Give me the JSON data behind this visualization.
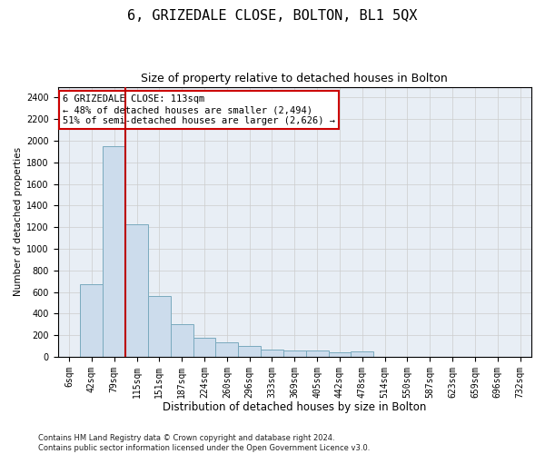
{
  "title": "6, GRIZEDALE CLOSE, BOLTON, BL1 5QX",
  "subtitle": "Size of property relative to detached houses in Bolton",
  "xlabel": "Distribution of detached houses by size in Bolton",
  "ylabel": "Number of detached properties",
  "categories": [
    "6sqm",
    "42sqm",
    "79sqm",
    "115sqm",
    "151sqm",
    "187sqm",
    "224sqm",
    "260sqm",
    "296sqm",
    "333sqm",
    "369sqm",
    "405sqm",
    "442sqm",
    "478sqm",
    "514sqm",
    "550sqm",
    "587sqm",
    "623sqm",
    "659sqm",
    "696sqm",
    "732sqm"
  ],
  "values": [
    0,
    672,
    1950,
    1230,
    560,
    300,
    175,
    130,
    100,
    70,
    60,
    55,
    45,
    50,
    0,
    0,
    0,
    0,
    0,
    0,
    0
  ],
  "bar_color": "#ccdcec",
  "bar_edge_color": "#7aaabe",
  "bar_linewidth": 0.7,
  "vline_color": "#bb0000",
  "vline_x": 2.48,
  "annotation_line1": "6 GRIZEDALE CLOSE: 113sqm",
  "annotation_line2": "← 48% of detached houses are smaller (2,494)",
  "annotation_line3": "51% of semi-detached houses are larger (2,626) →",
  "annotation_box_facecolor": "#ffffff",
  "annotation_box_edgecolor": "#cc0000",
  "ylim": [
    0,
    2500
  ],
  "yticks": [
    0,
    200,
    400,
    600,
    800,
    1000,
    1200,
    1400,
    1600,
    1800,
    2000,
    2200,
    2400
  ],
  "grid_color": "#cccccc",
  "plot_bg_color": "#e8eef5",
  "title_fontsize": 11,
  "subtitle_fontsize": 9,
  "xlabel_fontsize": 8.5,
  "ylabel_fontsize": 7.5,
  "tick_fontsize": 7,
  "annotation_fontsize": 7.5,
  "footer_fontsize": 6,
  "footer_text": "Contains HM Land Registry data © Crown copyright and database right 2024.\nContains public sector information licensed under the Open Government Licence v3.0."
}
